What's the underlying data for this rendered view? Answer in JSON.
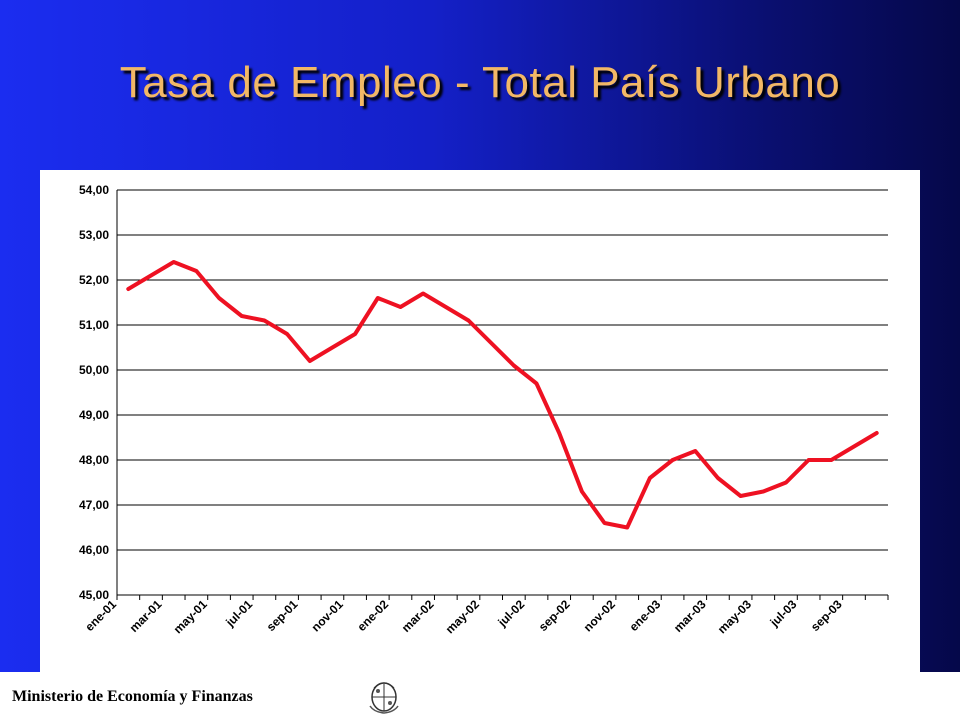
{
  "slide": {
    "title": "Tasa de Empleo - Total País Urbano",
    "footer": "Ministerio de Economía y Finanzas"
  },
  "colors": {
    "line": "#ee1122",
    "background_blue": "#1b2df0",
    "title": "#f2b866"
  },
  "icons": {
    "seal": "coat-of-arms-icon"
  },
  "chart_data": {
    "type": "line",
    "title": "",
    "xlabel": "",
    "ylabel": "",
    "ylim": [
      45,
      54
    ],
    "yticks": [
      "45,00",
      "46,00",
      "47,00",
      "48,00",
      "49,00",
      "50,00",
      "51,00",
      "52,00",
      "53,00",
      "54,00"
    ],
    "xtick_labels": [
      "ene-01",
      "mar-01",
      "may-01",
      "jul-01",
      "sep-01",
      "nov-01",
      "ene-02",
      "mar-02",
      "may-02",
      "jul-02",
      "sep-02",
      "nov-02",
      "ene-03",
      "mar-03",
      "may-03",
      "jul-03",
      "sep-03"
    ],
    "grid": "horizontal",
    "legend": "none",
    "series": [
      {
        "values": [
          51.8,
          52.1,
          52.4,
          52.2,
          51.6,
          51.2,
          51.1,
          50.8,
          50.2,
          50.5,
          50.8,
          51.6,
          51.4,
          51.7,
          51.4,
          51.1,
          50.6,
          50.1,
          49.7,
          48.6,
          47.3,
          46.6,
          46.5,
          47.6,
          48.0,
          48.2,
          47.6,
          47.2,
          47.3,
          47.5,
          48.0,
          48.0,
          48.3,
          48.6
        ]
      }
    ]
  }
}
